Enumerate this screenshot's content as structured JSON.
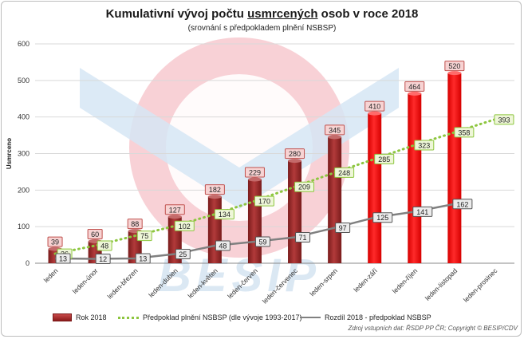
{
  "title": {
    "before": "Kumulativní vývoj počtu ",
    "underlined": "usmrcených",
    "after": " osob v roce 2018"
  },
  "subtitle": "(srovnání s předpokladem plnění NSBSP)",
  "source": "Zdroj vstupních dat: ŘSDP PP ČR; Copyright © BESIP/CDV",
  "watermark": "BESIP",
  "colors": {
    "bar_dark": "#a52a2a",
    "bar_red": "#ff0000",
    "forecast_line": "#8dc63f",
    "diff_line": "#808080"
  },
  "chart_data": {
    "type": "bar",
    "title": "Kumulativní vývoj počtu usmrcených osob v roce 2018",
    "subtitle": "(srovnání s předpokladem plnění NSBSP)",
    "ylabel": "Usmrceno",
    "xlabel": "",
    "ylim": [
      0,
      600
    ],
    "yticks": [
      0,
      100,
      200,
      300,
      400,
      500,
      600
    ],
    "grid": true,
    "legend_position": "bottom",
    "categories": [
      "leden",
      "leden-únor",
      "leden-březen",
      "leden-duben",
      "leden-květen",
      "leden-červen",
      "leden-červenec",
      "leden-srpen",
      "leden-září",
      "leden-říjen",
      "leden-listopad",
      "leden-prosinec"
    ],
    "series": [
      {
        "name": "Rok 2018",
        "type": "bar",
        "values": [
          39,
          60,
          88,
          127,
          182,
          229,
          280,
          345,
          410,
          464,
          520,
          null
        ]
      },
      {
        "name": "Předpoklad plnění NSBSP (dle vývoje 1993-2017)",
        "type": "line",
        "style": "dotted",
        "values": [
          26,
          48,
          75,
          102,
          134,
          170,
          209,
          248,
          285,
          323,
          358,
          393
        ]
      },
      {
        "name": "Rozdíl 2018 - předpoklad NSBSP",
        "type": "line",
        "style": "solid",
        "values": [
          13,
          12,
          13,
          25,
          48,
          59,
          71,
          97,
          125,
          141,
          162,
          null
        ]
      }
    ]
  }
}
